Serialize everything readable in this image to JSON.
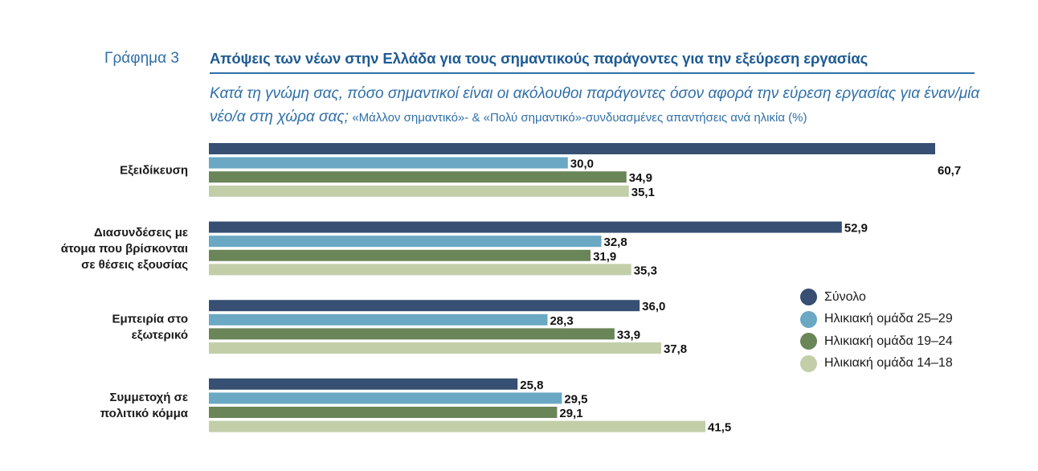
{
  "figure": {
    "label": "Γράφημα 3",
    "title": "Απόψεις των νέων στην Ελλάδα για τους σημαντικούς παράγοντες για την εξεύρεση εργασίας",
    "question": "Κατά τη γνώμη σας, πόσο σημαντικοί είναι οι ακόλουθοι παράγοντες όσον αφορά την εύρεση εργασίας για έναν/μία νέο/α στη χώρα σας;",
    "note": "«Μάλλον σημαντικό»- & «Πολύ σημαντικό»-συνδυασμένες απαντήσεις ανά ηλικία (%)"
  },
  "chart_data": {
    "type": "bar",
    "orientation": "horizontal",
    "title": "Απόψεις των νέων στην Ελλάδα για τους σημαντικούς παράγοντες για την εξεύρεση εργασίας",
    "xlabel": "",
    "ylabel": "",
    "unit": "%",
    "xlim": [
      0,
      60.7
    ],
    "grid": false,
    "legend_position": "right",
    "categories": [
      [
        "Εξειδίκευση"
      ],
      [
        "Διασυνδέσεις με",
        "άτομα που βρίσκονται",
        "σε θέσεις εξουσίας"
      ],
      [
        "Εμπειρία στο",
        "εξωτερικό"
      ],
      [
        "Συμμετοχή σε",
        "πολιτικό κόμμα"
      ]
    ],
    "series": [
      {
        "name": "Σύνολο",
        "color": "#364f72",
        "values": [
          60.7,
          52.9,
          36.0,
          25.8
        ],
        "labels": [
          "60,7",
          "52,9",
          "36,0",
          "25,8"
        ]
      },
      {
        "name": "Ηλικιακή ομάδα 25–29",
        "color": "#6aa8c3",
        "values": [
          30.0,
          32.8,
          28.3,
          29.5
        ],
        "labels": [
          "30,0",
          "32,8",
          "28,3",
          "29,5"
        ]
      },
      {
        "name": "Ηλικιακή ομάδα 19–24",
        "color": "#6a8558",
        "values": [
          34.9,
          31.9,
          33.9,
          29.1
        ],
        "labels": [
          "34,9",
          "31,9",
          "33,9",
          "29,1"
        ]
      },
      {
        "name": "Ηλικιακή ομάδα 14–18",
        "color": "#c2cea8",
        "values": [
          35.1,
          35.3,
          37.8,
          41.5
        ],
        "labels": [
          "35,1",
          "35,3",
          "37,8",
          "41,5"
        ]
      }
    ]
  }
}
